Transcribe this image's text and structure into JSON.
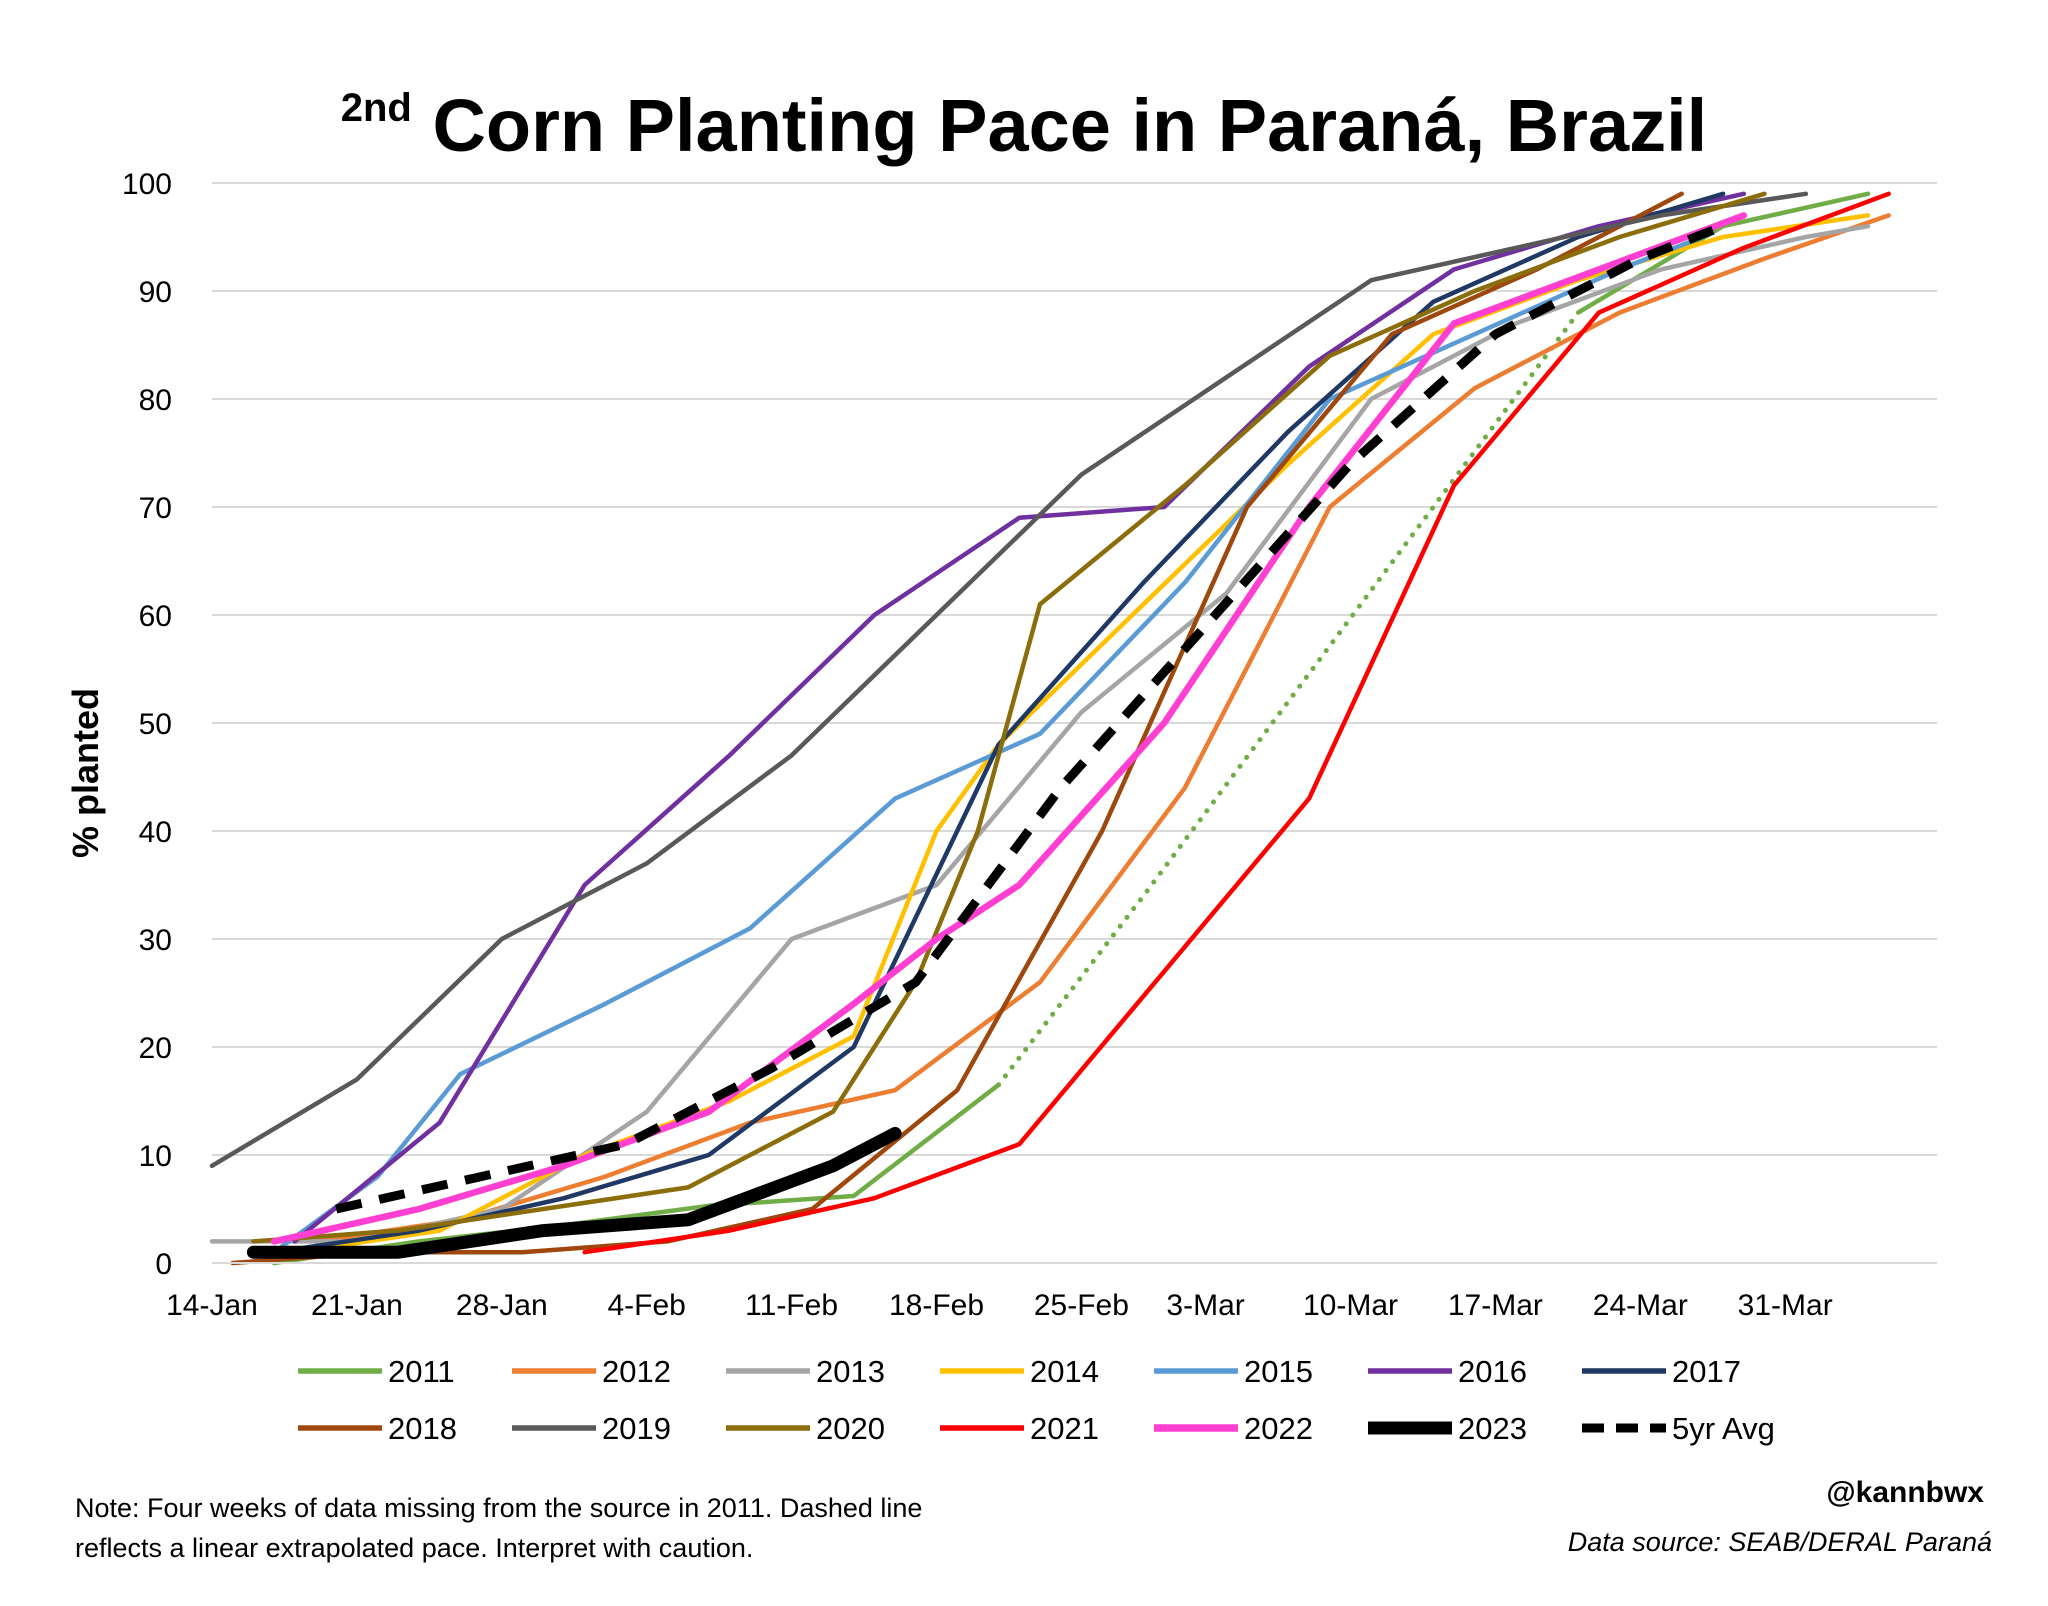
{
  "title": {
    "main": "Corn Planting Pace in Paraná, Brazil",
    "ordinal": "2",
    "suffix": "nd"
  },
  "footer": {
    "note_line1": "Note: Four weeks of data missing from the source in 2011. Dashed line",
    "note_line2": "reflects a linear extrapolated pace. Interpret with caution.",
    "handle": "@kannbwx",
    "source": "Data source: SEAB/DERAL Paraná"
  },
  "chart_data": {
    "type": "line",
    "title": "2nd Corn Planting Pace in Paraná, Brazil",
    "xlabel": "",
    "ylabel": "% planted",
    "x_unit": "days since 14-Jan",
    "xlim": [
      0,
      81
    ],
    "ylim": [
      0,
      100
    ],
    "yticks": [
      0,
      10,
      20,
      30,
      40,
      50,
      60,
      70,
      80,
      90,
      100
    ],
    "xticks": [
      {
        "label": "14-Jan",
        "x": 0
      },
      {
        "label": "21-Jan",
        "x": 7
      },
      {
        "label": "28-Jan",
        "x": 14
      },
      {
        "label": "4-Feb",
        "x": 21
      },
      {
        "label": "11-Feb",
        "x": 28
      },
      {
        "label": "18-Feb",
        "x": 35
      },
      {
        "label": "25-Feb",
        "x": 42
      },
      {
        "label": "3-Mar",
        "x": 48
      },
      {
        "label": "10-Mar",
        "x": 55
      },
      {
        "label": "17-Mar",
        "x": 62
      },
      {
        "label": "24-Mar",
        "x": 69
      },
      {
        "label": "31-Mar",
        "x": 76
      }
    ],
    "grid": true,
    "legend_position": "bottom",
    "series": [
      {
        "name": "2011",
        "color": "#70AD47",
        "width": 4.5,
        "segments": [
          {
            "style": "solid",
            "points": [
              [
                3,
                0
              ],
              [
                10,
                2
              ],
              [
                17,
                3.5
              ],
              [
                24,
                5.3
              ],
              [
                31,
                6.2
              ],
              [
                38,
                16.5
              ]
            ]
          },
          {
            "style": "dotted",
            "points": [
              [
                38,
                16.5
              ],
              [
                45,
                34
              ],
              [
                52,
                52
              ],
              [
                59,
                70
              ],
              [
                66,
                88
              ]
            ]
          },
          {
            "style": "solid",
            "points": [
              [
                66,
                88
              ],
              [
                73,
                96
              ],
              [
                80,
                99
              ]
            ]
          }
        ]
      },
      {
        "name": "2012",
        "color": "#ED7D31",
        "width": 4.5,
        "points": [
          [
            5,
            2
          ],
          [
            12,
            4
          ],
          [
            19,
            8
          ],
          [
            26,
            13
          ],
          [
            33,
            16
          ],
          [
            40,
            26
          ],
          [
            47,
            44
          ],
          [
            54,
            70
          ],
          [
            61,
            81
          ],
          [
            68,
            88
          ],
          [
            75,
            93
          ],
          [
            81,
            97
          ]
        ]
      },
      {
        "name": "2013",
        "color": "#A5A5A5",
        "width": 4.5,
        "points": [
          [
            0,
            2
          ],
          [
            7,
            2
          ],
          [
            14,
            5
          ],
          [
            21,
            14
          ],
          [
            28,
            30
          ],
          [
            35,
            35
          ],
          [
            42,
            51
          ],
          [
            49,
            62
          ],
          [
            56,
            80
          ],
          [
            63,
            87
          ],
          [
            70,
            92
          ],
          [
            77,
            95
          ],
          [
            80,
            96
          ]
        ]
      },
      {
        "name": "2014",
        "color": "#FFC000",
        "width": 4.5,
        "points": [
          [
            4,
            1
          ],
          [
            11,
            3
          ],
          [
            18,
            10
          ],
          [
            25,
            15
          ],
          [
            31,
            21
          ],
          [
            35,
            40
          ],
          [
            38,
            48
          ],
          [
            45,
            61
          ],
          [
            52,
            74
          ],
          [
            59,
            86
          ],
          [
            66,
            91
          ],
          [
            73,
            95
          ],
          [
            80,
            97
          ]
        ]
      },
      {
        "name": "2015",
        "color": "#5B9BD5",
        "width": 4.5,
        "points": [
          [
            3,
            1
          ],
          [
            8,
            8
          ],
          [
            12,
            17.5
          ],
          [
            19,
            24
          ],
          [
            26,
            31
          ],
          [
            33,
            43
          ],
          [
            40,
            49
          ],
          [
            47,
            63
          ],
          [
            54,
            80
          ],
          [
            61,
            86
          ],
          [
            68,
            92
          ],
          [
            72,
            95
          ]
        ]
      },
      {
        "name": "2016",
        "color": "#7030A0",
        "width": 4.5,
        "points": [
          [
            4,
            2
          ],
          [
            11,
            13
          ],
          [
            18,
            35
          ],
          [
            25,
            47
          ],
          [
            32,
            60
          ],
          [
            39,
            69
          ],
          [
            46,
            70
          ],
          [
            53,
            83
          ],
          [
            60,
            92
          ],
          [
            67,
            96
          ],
          [
            74,
            99
          ]
        ]
      },
      {
        "name": "2017",
        "color": "#1F3864",
        "width": 4.5,
        "points": [
          [
            3,
            1
          ],
          [
            10,
            3
          ],
          [
            17,
            6
          ],
          [
            24,
            10
          ],
          [
            31,
            20
          ],
          [
            38,
            48
          ],
          [
            45,
            63
          ],
          [
            52,
            77
          ],
          [
            59,
            89
          ],
          [
            66,
            95
          ],
          [
            73,
            99
          ]
        ]
      },
      {
        "name": "2018",
        "color": "#9E480E",
        "width": 4.5,
        "points": [
          [
            1,
            0
          ],
          [
            8,
            1
          ],
          [
            15,
            1
          ],
          [
            22,
            2
          ],
          [
            29,
            5
          ],
          [
            36,
            16
          ],
          [
            43,
            40
          ],
          [
            50,
            70
          ],
          [
            57,
            86
          ],
          [
            64,
            92
          ],
          [
            71,
            99
          ]
        ]
      },
      {
        "name": "2019",
        "color": "#595959",
        "width": 4.5,
        "points": [
          [
            0,
            9
          ],
          [
            7,
            17
          ],
          [
            14,
            30
          ],
          [
            21,
            37
          ],
          [
            28,
            47
          ],
          [
            35,
            60
          ],
          [
            42,
            73
          ],
          [
            49,
            82
          ],
          [
            56,
            91
          ],
          [
            63,
            94
          ],
          [
            70,
            97
          ],
          [
            77,
            99
          ]
        ]
      },
      {
        "name": "2020",
        "color": "#8B6E0B",
        "width": 4.5,
        "points": [
          [
            2,
            2
          ],
          [
            9,
            3
          ],
          [
            16,
            5
          ],
          [
            23,
            7
          ],
          [
            30,
            14
          ],
          [
            34,
            26
          ],
          [
            37,
            40
          ],
          [
            40,
            61
          ],
          [
            47,
            72
          ],
          [
            54,
            84
          ],
          [
            61,
            90
          ],
          [
            68,
            95
          ],
          [
            75,
            99
          ]
        ]
      },
      {
        "name": "2021",
        "color": "#FF0000",
        "width": 4.5,
        "points": [
          [
            18,
            1
          ],
          [
            25,
            3
          ],
          [
            32,
            6
          ],
          [
            39,
            11
          ],
          [
            46,
            27
          ],
          [
            53,
            43
          ],
          [
            60,
            72
          ],
          [
            67,
            88
          ],
          [
            74,
            94
          ],
          [
            81,
            99
          ]
        ]
      },
      {
        "name": "2022",
        "color": "#FF3FD1",
        "width": 6.5,
        "points": [
          [
            3,
            2
          ],
          [
            10,
            5
          ],
          [
            17,
            9
          ],
          [
            24,
            14
          ],
          [
            31,
            24
          ],
          [
            35,
            30
          ],
          [
            39,
            35
          ],
          [
            46,
            50
          ],
          [
            53,
            70
          ],
          [
            60,
            87
          ],
          [
            67,
            92
          ],
          [
            74,
            97
          ]
        ]
      },
      {
        "name": "2023",
        "color": "#000000",
        "width": 13,
        "points": [
          [
            2,
            1
          ],
          [
            9,
            1
          ],
          [
            16,
            3
          ],
          [
            23,
            4
          ],
          [
            30,
            9
          ],
          [
            33,
            12
          ]
        ]
      },
      {
        "name": "5yr Avg",
        "color": "#000000",
        "width": 9,
        "dashed": true,
        "points": [
          [
            6,
            5
          ],
          [
            13,
            8
          ],
          [
            20,
            11
          ],
          [
            27,
            18
          ],
          [
            34,
            26
          ],
          [
            41,
            44
          ],
          [
            48,
            59
          ],
          [
            55,
            74
          ],
          [
            62,
            86
          ],
          [
            69,
            93
          ],
          [
            73,
            96
          ]
        ]
      }
    ]
  }
}
